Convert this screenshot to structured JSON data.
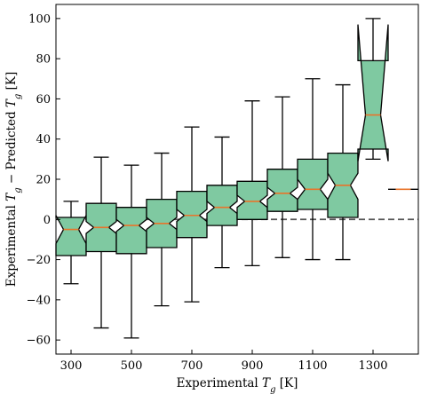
{
  "chart_data": {
    "type": "boxplot",
    "notched": true,
    "xlabel": "Experimental",
    "xlabel_symbol": "T",
    "xlabel_subscript": "g",
    "xlabel_unit": "[K]",
    "ylabel_prefix": "Experimental",
    "ylabel_sym1": "T",
    "ylabel_sub1": "g",
    "ylabel_minus": "−",
    "ylabel_mid": "Predicted",
    "ylabel_sym2": "T",
    "ylabel_sub2": "g",
    "ylabel_unit": "[K]",
    "xlim": [
      250,
      1450
    ],
    "ylim": [
      -67,
      107
    ],
    "x_ticks": [
      300,
      500,
      700,
      900,
      1100,
      1300
    ],
    "y_ticks": [
      -60,
      -40,
      -20,
      0,
      20,
      40,
      60,
      80,
      100
    ],
    "reference_line": 0,
    "box_color": "#7fc9a1",
    "median_color": "#e8742b",
    "boxes": [
      {
        "x": 300,
        "whislo": -32,
        "q1": -18,
        "med": -5,
        "q3": 1,
        "whishi": 9,
        "cilo": -12,
        "cihi": 2
      },
      {
        "x": 400,
        "whislo": -54,
        "q1": -16,
        "med": -4,
        "q3": 8,
        "whishi": 31,
        "cilo": -7,
        "cihi": -1
      },
      {
        "x": 500,
        "whislo": -59,
        "q1": -17,
        "med": -3,
        "q3": 6,
        "whishi": 27,
        "cilo": -6,
        "cihi": 0
      },
      {
        "x": 600,
        "whislo": -43,
        "q1": -14,
        "med": -2,
        "q3": 10,
        "whishi": 33,
        "cilo": -5,
        "cihi": 1
      },
      {
        "x": 700,
        "whislo": -41,
        "q1": -9,
        "med": 2,
        "q3": 14,
        "whishi": 46,
        "cilo": -1,
        "cihi": 5
      },
      {
        "x": 800,
        "whislo": -24,
        "q1": -3,
        "med": 6,
        "q3": 17,
        "whishi": 41,
        "cilo": 3,
        "cihi": 9
      },
      {
        "x": 900,
        "whislo": -23,
        "q1": 0,
        "med": 9,
        "q3": 19,
        "whishi": 59,
        "cilo": 6,
        "cihi": 12
      },
      {
        "x": 1000,
        "whislo": -19,
        "q1": 4,
        "med": 13,
        "q3": 25,
        "whishi": 61,
        "cilo": 10,
        "cihi": 16
      },
      {
        "x": 1100,
        "whislo": -20,
        "q1": 5,
        "med": 15,
        "q3": 30,
        "whishi": 70,
        "cilo": 10,
        "cihi": 20
      },
      {
        "x": 1200,
        "whislo": -20,
        "q1": 1,
        "med": 17,
        "q3": 33,
        "whishi": 67,
        "cilo": 10,
        "cihi": 23
      },
      {
        "x": 1300,
        "whislo": 30,
        "q1": 35,
        "med": 52,
        "q3": 79,
        "whishi": 100,
        "cilo": 29,
        "cihi": 97
      },
      {
        "x": 1400,
        "whislo": 15,
        "q1": 15,
        "med": 15,
        "q3": 15,
        "whishi": 15,
        "cilo": 15,
        "cihi": 15
      }
    ]
  }
}
